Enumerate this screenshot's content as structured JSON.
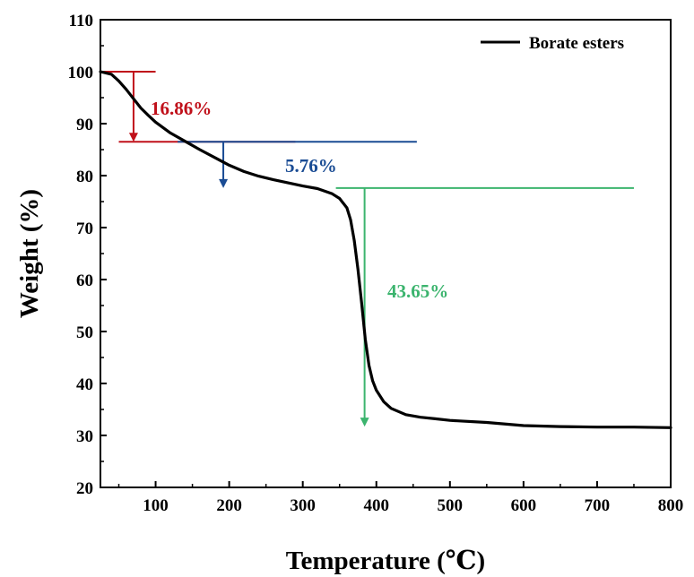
{
  "chart_data": {
    "type": "line",
    "xlabel": "Temperature (℃)",
    "ylabel": "Weight (%)",
    "xlim": [
      25,
      800
    ],
    "ylim": [
      20,
      110
    ],
    "xticks": [
      100,
      200,
      300,
      400,
      500,
      600,
      700,
      800
    ],
    "yticks": [
      20,
      30,
      40,
      50,
      60,
      70,
      80,
      90,
      100,
      110
    ],
    "grid": false,
    "legend_position": "top-right",
    "series": [
      {
        "name": "Borate esters",
        "color": "#000000",
        "x": [
          25,
          40,
          50,
          60,
          70,
          80,
          90,
          100,
          120,
          140,
          160,
          180,
          200,
          220,
          240,
          260,
          280,
          300,
          320,
          340,
          350,
          360,
          365,
          370,
          375,
          380,
          385,
          390,
          395,
          400,
          410,
          420,
          440,
          460,
          480,
          500,
          550,
          600,
          650,
          700,
          750,
          800
        ],
        "y": [
          100,
          99.5,
          98.2,
          96.6,
          94.8,
          93.0,
          91.6,
          90.3,
          88.2,
          86.6,
          85.0,
          83.5,
          82.0,
          80.8,
          79.9,
          79.2,
          78.6,
          78.0,
          77.5,
          76.5,
          75.6,
          73.8,
          71.5,
          67.5,
          62.0,
          55.5,
          48.5,
          43.5,
          40.5,
          38.7,
          36.5,
          35.2,
          34.0,
          33.5,
          33.2,
          32.9,
          32.5,
          31.9,
          31.7,
          31.6,
          31.6,
          31.5
        ]
      }
    ],
    "annotations": [
      {
        "text": "16.86%",
        "color": "#c0101a",
        "level_from": 100,
        "level_to": 86.5,
        "arrow_x": 70,
        "line_x": [
          25,
          100
        ],
        "line2_x": [
          50,
          290
        ]
      },
      {
        "text": "5.76%",
        "color": "#1a4c94",
        "level_from": 86.5,
        "level_to": 77.6,
        "arrow_x": 192,
        "line_x": [
          130,
          455
        ]
      },
      {
        "text": "43.65%",
        "color": "#3cb46e",
        "level_from": 77.6,
        "level_to": 31.7,
        "arrow_x": 384,
        "line_x": [
          345,
          750
        ]
      }
    ]
  }
}
